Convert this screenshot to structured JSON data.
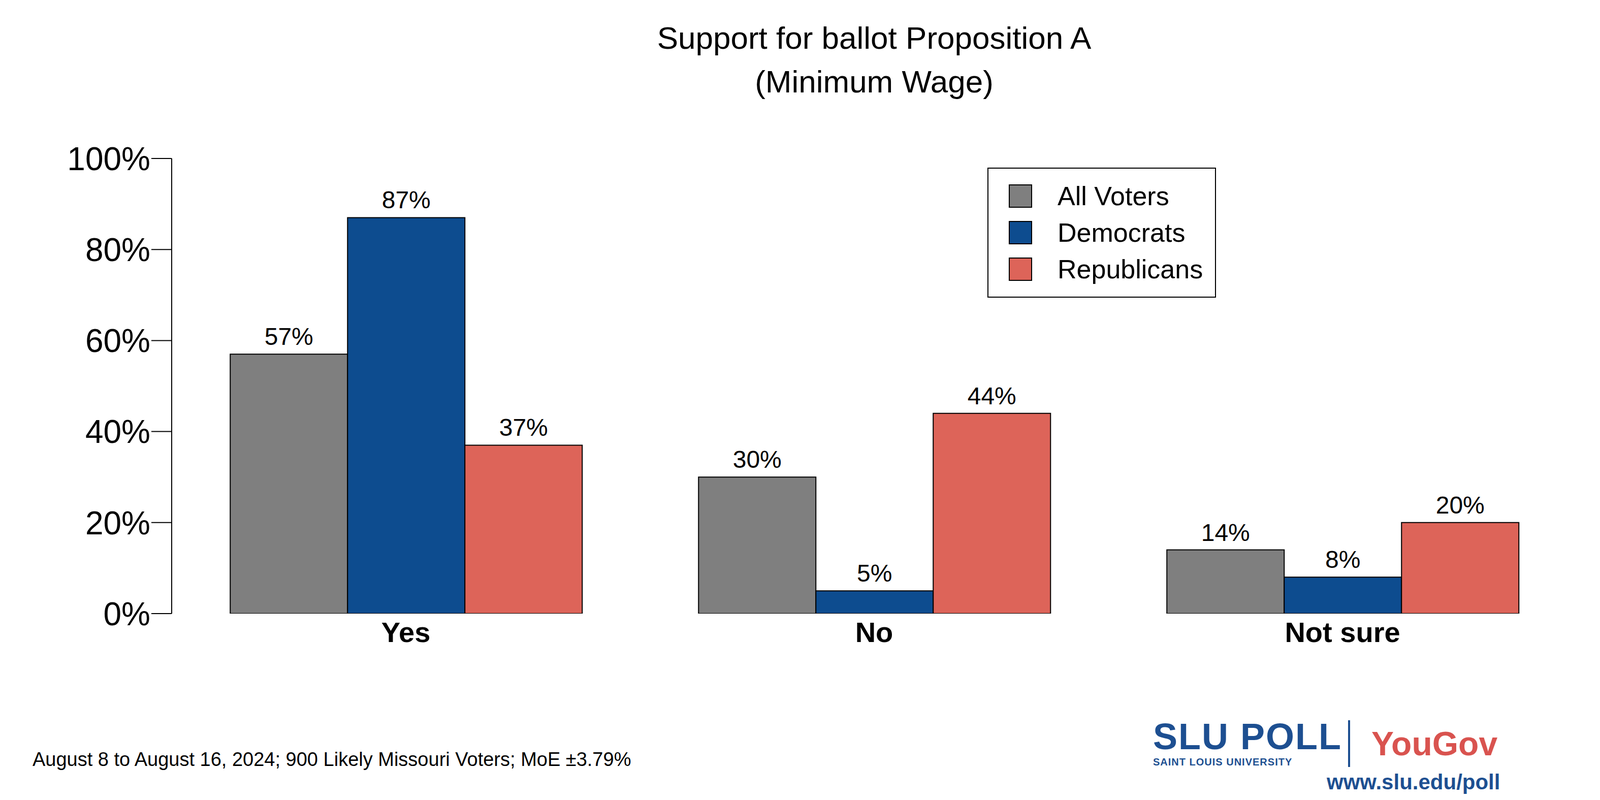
{
  "chart_data": {
    "type": "bar",
    "title": "Support for ballot Proposition A",
    "subtitle": "(Minimum Wage)",
    "categories": [
      "Yes",
      "No",
      "Not sure"
    ],
    "series": [
      {
        "name": "All Voters",
        "color": "#7f7f7f",
        "values": [
          57,
          30,
          14
        ],
        "value_labels": [
          "57%",
          "30%",
          "14%"
        ]
      },
      {
        "name": "Democrats",
        "color": "#0d4c8f",
        "values": [
          87,
          5,
          8
        ],
        "value_labels": [
          "87%",
          "5%",
          "8%"
        ]
      },
      {
        "name": "Republicans",
        "color": "#dd6459",
        "values": [
          37,
          44,
          20
        ],
        "value_labels": [
          "37%",
          "44%",
          "20%"
        ]
      }
    ],
    "ylim": [
      0,
      100
    ],
    "yticks": [
      {
        "value": 0,
        "label": "0%"
      },
      {
        "value": 20,
        "label": "20%"
      },
      {
        "value": 40,
        "label": "40%"
      },
      {
        "value": 60,
        "label": "60%"
      },
      {
        "value": 80,
        "label": "80%"
      },
      {
        "value": 100,
        "label": "100%"
      }
    ],
    "grid": false,
    "legend": "upper right",
    "data_labels": true,
    "annotations": [
      "August 8 to August 16, 2024; 900 Likely Missouri Voters; MoE ±3.79%",
      "SLU POLL",
      "SAINT LOUIS UNIVERSITY",
      "YouGov",
      "www.slu.edu/poll"
    ]
  }
}
